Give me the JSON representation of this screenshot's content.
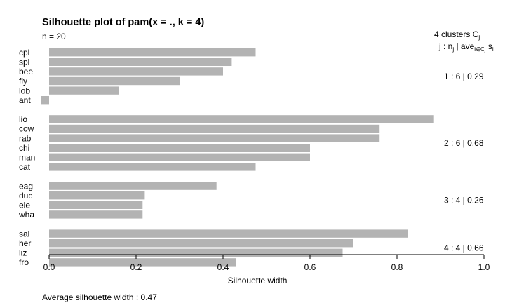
{
  "chart_data": {
    "type": "bar",
    "orientation": "horizontal",
    "title": "Silhouette plot of pam(x = ., k = 4)",
    "n_label": "n = 20",
    "xlabel": "Silhouette width",
    "xlabel_sub": "i",
    "xlim": [
      0,
      1
    ],
    "xticks": [
      "0.0",
      "0.2",
      "0.4",
      "0.6",
      "0.8",
      "1.0"
    ],
    "bar_color": "#b3b3b3",
    "legend_header": {
      "clusters_line": "4  clusters  C",
      "clusters_sub": "j",
      "stats_j": "j :  n",
      "stats_j_sub": "j",
      "stats_sep": " | ave",
      "stats_ave_sub": "i∈Cj",
      "stats_s": "  s",
      "stats_s_sub": "i"
    },
    "clusters": [
      {
        "label": "1 :   6  |  0.29",
        "members": [
          {
            "name": "cpl",
            "value": 0.475
          },
          {
            "name": "spi",
            "value": 0.42
          },
          {
            "name": "bee",
            "value": 0.4
          },
          {
            "name": "fly",
            "value": 0.3
          },
          {
            "name": "lob",
            "value": 0.16
          },
          {
            "name": "ant",
            "value": -0.018
          }
        ]
      },
      {
        "label": "2 :   6  |  0.68",
        "members": [
          {
            "name": "lio",
            "value": 0.885
          },
          {
            "name": "cow",
            "value": 0.76
          },
          {
            "name": "rab",
            "value": 0.76
          },
          {
            "name": "chi",
            "value": 0.6
          },
          {
            "name": "man",
            "value": 0.6
          },
          {
            "name": "cat",
            "value": 0.475
          }
        ]
      },
      {
        "label": "3 :   4  |  0.26",
        "members": [
          {
            "name": "eag",
            "value": 0.385
          },
          {
            "name": "duc",
            "value": 0.22
          },
          {
            "name": "ele",
            "value": 0.215
          },
          {
            "name": "wha",
            "value": 0.215
          }
        ]
      },
      {
        "label": "4 :   4  |  0.66",
        "members": [
          {
            "name": "sal",
            "value": 0.825
          },
          {
            "name": "her",
            "value": 0.7
          },
          {
            "name": "liz",
            "value": 0.675
          },
          {
            "name": "fro",
            "value": 0.43
          }
        ]
      }
    ],
    "footer": "Average silhouette width :  0.47"
  }
}
